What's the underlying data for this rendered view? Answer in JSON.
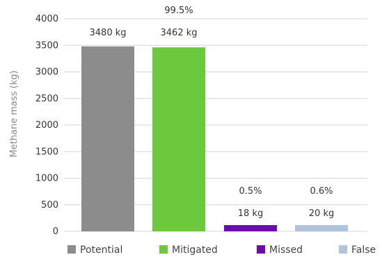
{
  "chart_data": {
    "type": "bar",
    "categories": [
      "Potential",
      "Mitigated",
      "Missed",
      "False"
    ],
    "values": [
      3480,
      3462,
      18,
      20
    ],
    "colors": [
      "#8c8c8c",
      "#6cc83c",
      "#6a0dad",
      "#b0c4de"
    ],
    "value_labels": [
      "3480 kg",
      "3462 kg",
      "18 kg",
      "20 kg"
    ],
    "percent_labels": [
      "",
      "99.5%",
      "0.5%",
      "0.6%"
    ],
    "xlabel": "",
    "ylabel": "Methane mass (kg)",
    "ylim": [
      0,
      4000
    ],
    "yticks": [
      0,
      500,
      1000,
      1500,
      2000,
      2500,
      3000,
      3500,
      4000
    ],
    "ytick_labels": [
      "0",
      "500",
      "1000",
      "1500",
      "2000",
      "2500",
      "3000",
      "3500",
      "4000"
    ],
    "grid": true,
    "legend_position": "bottom",
    "legend": [
      "Potential",
      "Mitigated",
      "Missed",
      "False"
    ]
  }
}
